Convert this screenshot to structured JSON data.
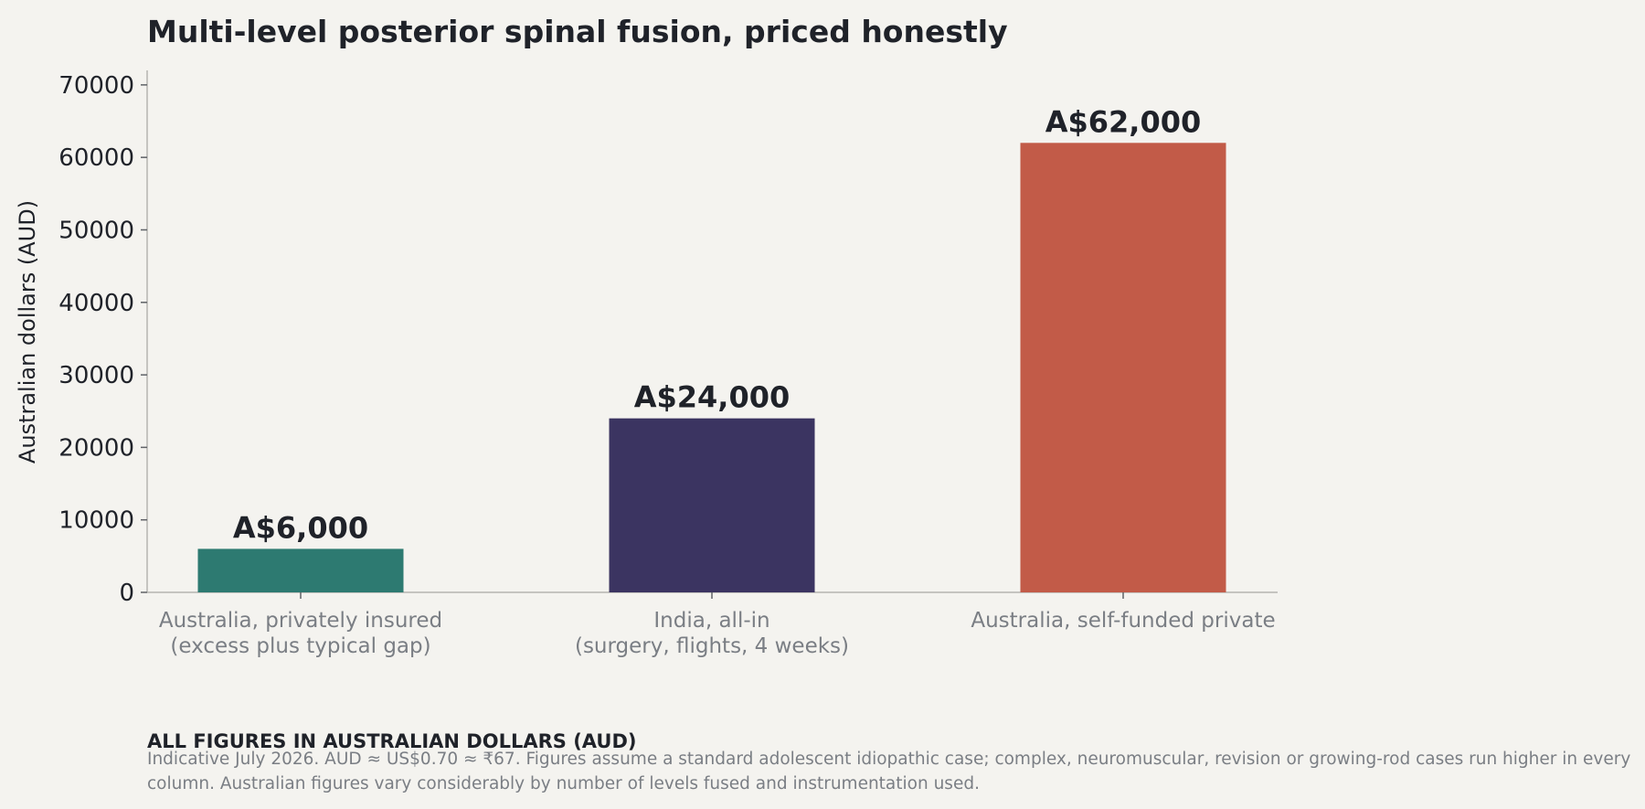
{
  "chart_data": {
    "type": "bar",
    "title": "Multi-level posterior spinal fusion, priced honestly",
    "ylabel": "Australian dollars (AUD)",
    "xlabel": "",
    "ylim": [
      0,
      72000
    ],
    "yticks": [
      0,
      10000,
      20000,
      30000,
      40000,
      50000,
      60000,
      70000
    ],
    "categories": [
      [
        "Australia, privately insured",
        "(excess plus typical gap)"
      ],
      [
        "India, all-in",
        "(surgery, flights, 4 weeks)"
      ],
      [
        "Australia, self-funded private"
      ]
    ],
    "values": [
      6000,
      24000,
      62000
    ],
    "data_labels": [
      "A$6,000",
      "A$24,000",
      "A$62,000"
    ],
    "colors": [
      "#2d7a71",
      "#3b3461",
      "#c25b48"
    ],
    "grid": false,
    "legend": "none"
  },
  "footnote": {
    "heading": "ALL FIGURES IN AUSTRALIAN DOLLARS (AUD)",
    "text": "Indicative July 2026. AUD ≈ US$0.70 ≈ ₹67. Figures assume a standard adolescent idiopathic case; complex, neuromuscular, revision or growing-rod cases run higher in every column. Australian figures vary considerably by number of levels fused and instrumentation used."
  }
}
